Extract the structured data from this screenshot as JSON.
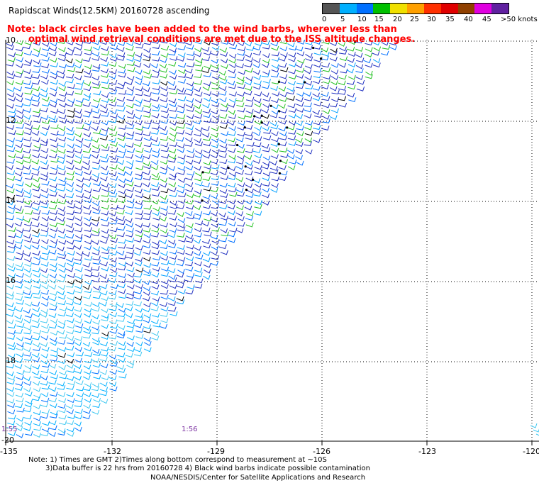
{
  "header": {
    "title": "Rapidscat Winds(12.5KM) 20160728 ascending",
    "note_line1": "Note: black circles have been added to the wind barbs, wherever less than",
    "note_line2": "optimal wind retrieval conditions are met due to the ISS altitude changes."
  },
  "legend": {
    "colors": [
      "#555555",
      "#00b0ff",
      "#0070ff",
      "#00c000",
      "#f0e000",
      "#ffa000",
      "#ff3000",
      "#e00000",
      "#904000",
      "#e000e0",
      "#6020a0"
    ],
    "labels": [
      "0",
      "5",
      "10",
      "15",
      "20",
      "25",
      "30",
      "35",
      "40",
      "45",
      ">50 knots"
    ]
  },
  "axes": {
    "x_ticks": [
      "-135",
      "-132",
      "-129",
      "-126",
      "-123",
      "-120"
    ],
    "y_ticks": [
      "10",
      "12",
      "14",
      "16",
      "18",
      "-20"
    ]
  },
  "times": [
    "1:55",
    "1:56"
  ],
  "footer": {
    "line1": "Note: 1) Times are GMT 2)Times along bottom correspond to measurement at ~10S",
    "line2": "3)Data buffer is 22 hrs from 20160728 4) Black wind barbs indicate possible contamination",
    "line3": "NOAA/NESDIS/Center for Satellite Applications and Research"
  }
}
